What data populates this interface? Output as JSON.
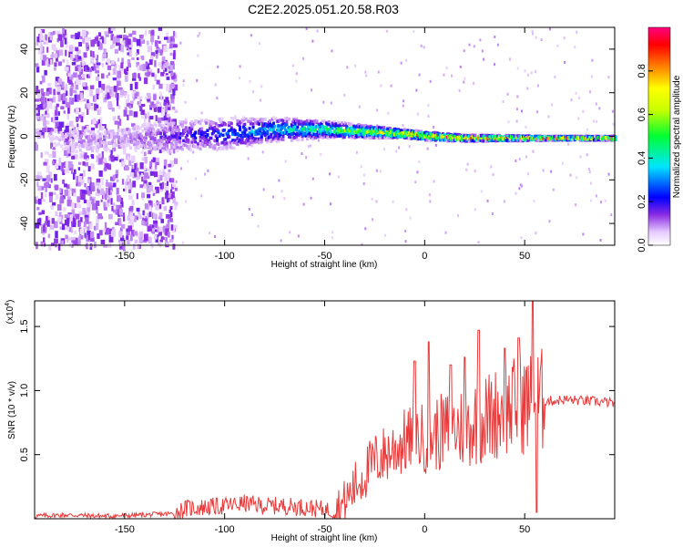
{
  "figure": {
    "title": "C2E2.2025.051.20.58.R03"
  },
  "chart_data": [
    {
      "type": "heatmap",
      "title": "C2E2.2025.051.20.58.R03",
      "xlabel": "Height of straight line (km)",
      "ylabel": "Frequency (Hz)",
      "xlim": [
        -195,
        95
      ],
      "ylim": [
        -50,
        50
      ],
      "xticks": [
        -150,
        -100,
        -50,
        0,
        50
      ],
      "yticks": [
        -40,
        -20,
        0,
        20,
        40
      ],
      "grid": false,
      "description_of_content": "spectral energy: broad noise for x < -125, band narrowing toward 0 Hz as height increases",
      "ridge": {
        "x": [
          -190,
          -170,
          -150,
          -125,
          -100,
          -75,
          -50,
          -30,
          -10,
          0,
          20,
          50,
          60,
          95
        ],
        "center_hz": [
          0,
          -2,
          -1,
          0,
          1,
          3,
          3,
          2,
          1,
          0,
          -1,
          -1,
          -1,
          -1
        ],
        "halfwidth_hz": [
          12,
          10,
          9,
          9,
          8,
          6,
          4,
          3,
          2,
          2,
          1.5,
          1.2,
          1,
          1
        ],
        "amplitude": [
          0.05,
          0.12,
          0.1,
          0.2,
          0.3,
          0.4,
          0.55,
          0.7,
          0.85,
          0.9,
          0.95,
          0.98,
          0.95,
          0.9
        ]
      }
    },
    {
      "type": "colorbar",
      "label": "Normalized spectral amplitude",
      "ylim": [
        0,
        1
      ],
      "ticks": [
        "0.0",
        "0.2",
        "0.4",
        "0.6",
        "0.8"
      ],
      "tick_values": [
        0,
        0.2,
        0.4,
        0.6,
        0.8
      ]
    },
    {
      "type": "line",
      "xlabel": "Height of straight line (km)",
      "ylabel": "SNR (10 * v/v)",
      "multiplier_label": "(x10",
      "multiplier_exp": "4",
      "multiplier_close": ")",
      "xlim": [
        -195,
        95
      ],
      "ylim": [
        0,
        1.7
      ],
      "xticks": [
        -150,
        -100,
        -50,
        0,
        50
      ],
      "yticks": [
        0.5,
        1.0,
        1.5
      ],
      "yticklabels": [
        "0.5",
        "1.0",
        "1.5"
      ],
      "grid": false,
      "series": [
        {
          "color": "#e83a3a",
          "x": [
            -195,
            -180,
            -160,
            -140,
            -125,
            -120,
            -110,
            -100,
            -90,
            -80,
            -70,
            -60,
            -50,
            -45,
            -40,
            -35,
            -30,
            -25,
            -20,
            -15,
            -10,
            -5,
            0,
            5,
            10,
            15,
            20,
            25,
            30,
            35,
            40,
            45,
            50,
            55,
            60,
            65,
            70,
            80,
            90,
            95
          ],
          "values": [
            0.02,
            0.03,
            0.02,
            0.03,
            0.04,
            0.08,
            0.09,
            0.1,
            0.12,
            0.1,
            0.1,
            0.09,
            0.07,
            0.06,
            0.12,
            0.25,
            0.35,
            0.45,
            0.5,
            0.55,
            0.6,
            0.62,
            0.63,
            0.66,
            0.68,
            0.7,
            0.72,
            0.75,
            0.78,
            0.82,
            0.86,
            0.88,
            0.9,
            0.92,
            0.92,
            0.92,
            0.93,
            0.92,
            0.91,
            0.9
          ],
          "spikes": [
            {
              "x": -5,
              "value": 1.23
            },
            {
              "x": 2,
              "value": 1.38
            },
            {
              "x": 13,
              "value": 1.2
            },
            {
              "x": 20,
              "value": 1.26
            },
            {
              "x": 27,
              "value": 1.47
            },
            {
              "x": 40,
              "value": 1.33
            },
            {
              "x": 47,
              "value": 1.41
            },
            {
              "x": 54,
              "value": 1.72
            },
            {
              "x": 56,
              "value": 0.05
            }
          ]
        }
      ]
    }
  ]
}
